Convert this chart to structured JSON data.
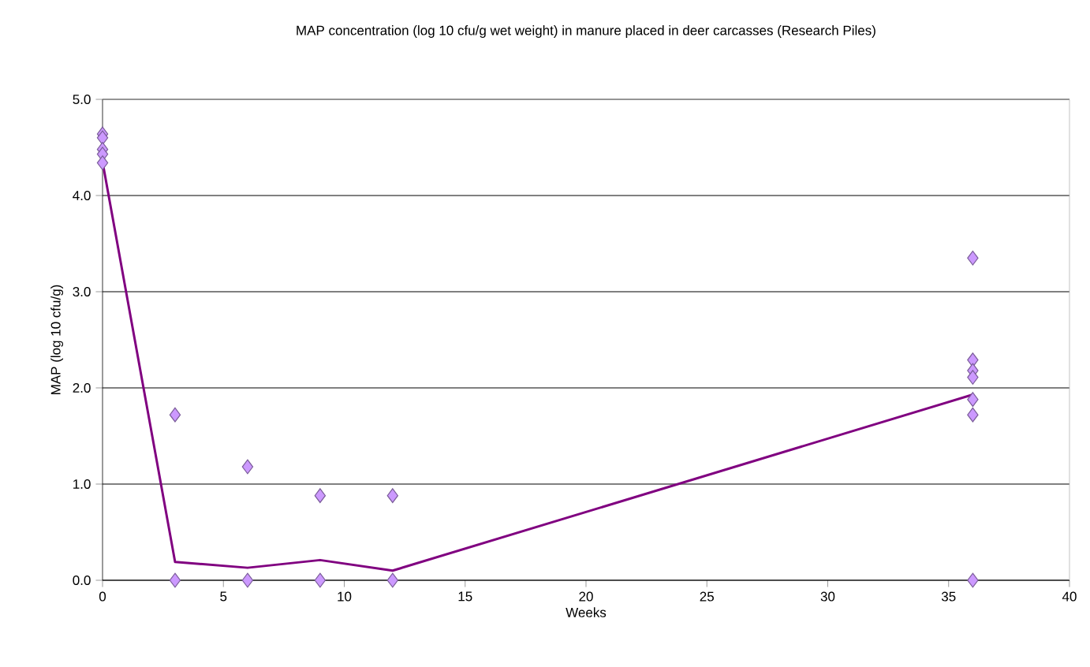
{
  "chart_data": {
    "type": "scatter",
    "title": "MAP concentration (log 10 cfu/g wet weight) in manure placed in deer carcasses (Research Piles)",
    "xlabel": "Weeks",
    "ylabel": "MAP (log 10 cfu/g)",
    "series": [
      {
        "color": "#cc99ff",
        "marker": "diamond",
        "x": [
          0,
          0,
          0,
          0,
          0,
          3,
          3,
          6,
          6,
          9,
          9,
          12,
          12,
          36,
          36,
          36,
          36,
          36,
          36,
          36
        ],
        "values": [
          4.64,
          4.6,
          4.48,
          4.43,
          4.34,
          1.72,
          0,
          1.18,
          0,
          0.88,
          0,
          0.88,
          0,
          3.35,
          2.29,
          2.18,
          2.11,
          1.88,
          1.72,
          0
        ]
      },
      {
        "type": "line",
        "color": "#800080",
        "marker": "none",
        "line_style": "solid",
        "x": [
          0,
          3,
          6,
          9,
          12,
          36
        ],
        "values": [
          4.35,
          0.19,
          0.13,
          0.21,
          0.1,
          1.93
        ]
      }
    ],
    "xlim": [
      0,
      40
    ],
    "ylim": [
      0,
      5
    ],
    "xticks": [
      0,
      5,
      10,
      15,
      20,
      25,
      30,
      35,
      40
    ],
    "yticks": [
      {
        "value": 0,
        "label": "0.0"
      },
      {
        "value": 1,
        "label": "1.0"
      },
      {
        "value": 2,
        "label": "2.0"
      },
      {
        "value": 3,
        "label": "3.0"
      },
      {
        "value": 4,
        "label": "4.0"
      },
      {
        "value": 5,
        "label": "5.0"
      }
    ],
    "grid": "y",
    "legend": false
  }
}
